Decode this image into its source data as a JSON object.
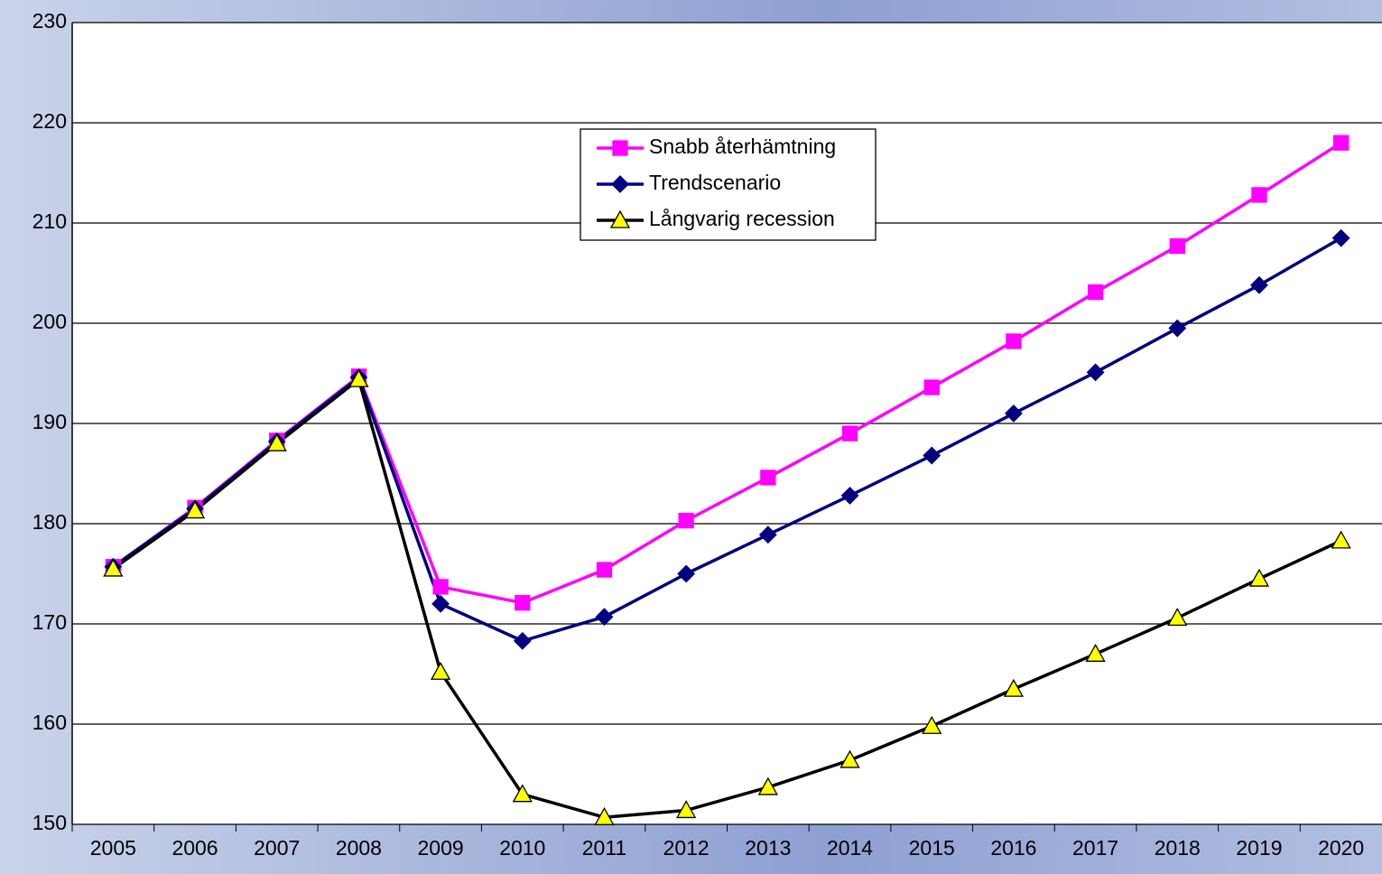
{
  "chart_data": {
    "type": "line",
    "categories": [
      "2005",
      "2006",
      "2007",
      "2008",
      "2009",
      "2010",
      "2011",
      "2012",
      "2013",
      "2014",
      "2015",
      "2016",
      "2017",
      "2018",
      "2019",
      "2020"
    ],
    "series": [
      {
        "name": "Snabb återhämtning",
        "color": "#ff00ff",
        "marker": "square",
        "values": [
          175.7,
          181.6,
          188.3,
          194.7,
          173.7,
          172.1,
          175.4,
          180.3,
          184.6,
          189.0,
          193.6,
          198.2,
          203.1,
          207.7,
          212.8,
          218.0
        ]
      },
      {
        "name": "Trendscenario",
        "color": "#000080",
        "marker": "diamond",
        "values": [
          175.7,
          181.5,
          188.2,
          194.6,
          172.0,
          168.3,
          170.7,
          175.0,
          178.9,
          182.8,
          186.8,
          191.0,
          195.1,
          199.5,
          203.8,
          208.5
        ]
      },
      {
        "name": "Långvarig recession",
        "color": "#000000",
        "marker": "triangle",
        "marker_color": "#ffff00",
        "values": [
          175.5,
          181.3,
          188.0,
          194.4,
          165.2,
          153.0,
          150.7,
          151.4,
          153.7,
          156.4,
          159.8,
          163.5,
          167.0,
          170.6,
          174.5,
          178.3
        ]
      }
    ],
    "ylim": [
      150,
      230
    ],
    "yticks": [
      150,
      160,
      170,
      180,
      190,
      200,
      210,
      220,
      230
    ],
    "grid": true
  }
}
